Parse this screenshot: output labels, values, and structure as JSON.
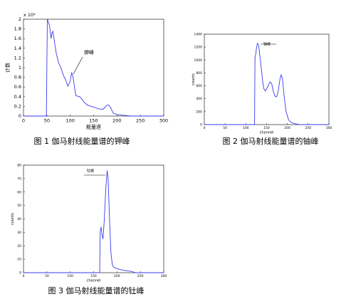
{
  "chart_data": [
    {
      "type": "line",
      "caption": "图 1 伽马射线能量谱的钾峰",
      "xlabel": "能量道",
      "ylabel": "计数",
      "scale_note": "x 10⁴",
      "annotation": "钾峰",
      "x": [
        0,
        49,
        50,
        51,
        53,
        56,
        59,
        61,
        63,
        66,
        70,
        75,
        80,
        85,
        90,
        95,
        100,
        103,
        106,
        112,
        120,
        125,
        130,
        138,
        145,
        152,
        160,
        170,
        178,
        182,
        186,
        192,
        200,
        210,
        220,
        230,
        300
      ],
      "series": [
        {
          "name": "spectrum",
          "color": "#3a3af0",
          "values": [
            0,
            0,
            1.0,
            2.0,
            1.95,
            1.85,
            1.6,
            1.72,
            1.75,
            1.55,
            1.3,
            1.1,
            1.0,
            0.85,
            0.75,
            0.62,
            0.72,
            0.9,
            0.8,
            0.42,
            0.4,
            0.35,
            0.28,
            0.22,
            0.2,
            0.18,
            0.15,
            0.14,
            0.22,
            0.23,
            0.18,
            0.06,
            0.03,
            0.02,
            0.01,
            0,
            0
          ]
        }
      ],
      "xlim": [
        0,
        300
      ],
      "xticks": [
        0,
        50,
        100,
        150,
        200,
        250,
        300
      ],
      "ylim": [
        0,
        2
      ],
      "yticks": [
        0,
        0.2,
        0.4,
        0.6,
        0.8,
        1,
        1.2,
        1.4,
        1.6,
        1.8,
        2
      ]
    },
    {
      "type": "line",
      "caption": "图 2 伽马射线能量谱的铀峰",
      "xlabel": "channel",
      "ylabel": "counts",
      "annotation": "铀峰",
      "x": [
        0,
        121,
        122,
        124,
        126,
        128,
        131,
        135,
        140,
        143,
        147,
        152,
        158,
        162,
        166,
        170,
        174,
        178,
        182,
        185,
        188,
        192,
        197,
        203,
        210,
        220,
        230,
        300
      ],
      "series": [
        {
          "name": "spectrum",
          "color": "#3a3af0",
          "values": [
            0,
            0,
            1030,
            1100,
            1200,
            1260,
            1220,
            1000,
            700,
            560,
            520,
            580,
            660,
            640,
            520,
            440,
            430,
            520,
            700,
            770,
            720,
            450,
            200,
            70,
            30,
            10,
            0,
            0
          ]
        }
      ],
      "xlim": [
        0,
        300
      ],
      "xticks": [
        0,
        50,
        100,
        150,
        200,
        250,
        300
      ],
      "ylim": [
        0,
        1400
      ],
      "yticks": [
        0,
        200,
        400,
        600,
        800,
        1000,
        1200,
        1400
      ]
    },
    {
      "type": "line",
      "caption": "图 3 伽马射线能量谱的钍峰",
      "xlabel": "channel",
      "ylabel": "counts",
      "annotation": "钍峰",
      "x": [
        0,
        163,
        164,
        166,
        168,
        170,
        173,
        176,
        179,
        181,
        184,
        187,
        190,
        193,
        200,
        210,
        220,
        230,
        240,
        300
      ],
      "series": [
        {
          "name": "spectrum",
          "color": "#3a3af0",
          "values": [
            0,
            0,
            30,
            34,
            28,
            25,
            40,
            62,
            76,
            70,
            40,
            15,
            6,
            4,
            3,
            2,
            1.5,
            1,
            0,
            0
          ]
        }
      ],
      "xlim": [
        0,
        300
      ],
      "xticks": [
        0,
        50,
        100,
        150,
        200,
        250,
        300
      ],
      "ylim": [
        0,
        80
      ],
      "yticks": [
        0,
        10,
        20,
        30,
        40,
        50,
        60,
        70,
        80
      ]
    }
  ]
}
